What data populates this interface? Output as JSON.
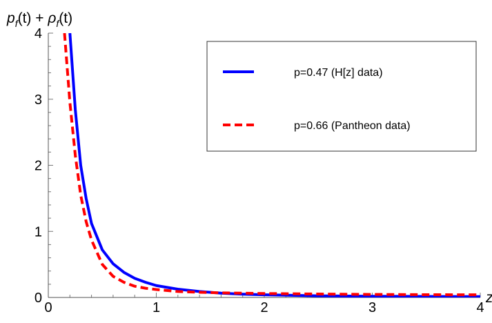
{
  "chart_data": {
    "type": "line",
    "title": "",
    "xlabel": "z",
    "ylabel": "p_f(t) + ρ_f(t)",
    "ylabel_parts": {
      "p": "p",
      "p_sub": "f",
      "p_arg": "(t) + ",
      "rho": "ρ",
      "rho_sub": "f",
      "rho_arg": "(t)"
    },
    "xlim": [
      0,
      4
    ],
    "ylim": [
      0,
      4
    ],
    "x_ticks": [
      0,
      1,
      2,
      3,
      4
    ],
    "y_ticks": [
      0,
      1,
      2,
      3,
      4
    ],
    "x_tick_labels": [
      "0",
      "1",
      "2",
      "3",
      "4"
    ],
    "y_tick_labels": [
      "0",
      "1",
      "2",
      "3",
      "4"
    ],
    "grid": false,
    "legend_position": "top-right",
    "series": [
      {
        "name": "p=0.47 (H[z] data)",
        "color": "#0000ff",
        "style": "solid",
        "points": [
          [
            0.2,
            4.0
          ],
          [
            0.25,
            2.84
          ],
          [
            0.3,
            2.0
          ],
          [
            0.35,
            1.5
          ],
          [
            0.4,
            1.12
          ],
          [
            0.5,
            0.72
          ],
          [
            0.6,
            0.51
          ],
          [
            0.7,
            0.38
          ],
          [
            0.8,
            0.29
          ],
          [
            0.9,
            0.23
          ],
          [
            1.0,
            0.18
          ],
          [
            1.2,
            0.125
          ],
          [
            1.4,
            0.09
          ],
          [
            1.6,
            0.065
          ],
          [
            1.8,
            0.05
          ],
          [
            2.0,
            0.04
          ],
          [
            2.5,
            0.025
          ],
          [
            3.0,
            0.018
          ],
          [
            3.5,
            0.015
          ],
          [
            4.0,
            0.013
          ]
        ]
      },
      {
        "name": "p=0.66 (Pantheon data)",
        "color": "#ff0000",
        "style": "dashed",
        "points": [
          [
            0.15,
            4.0
          ],
          [
            0.2,
            2.95
          ],
          [
            0.25,
            2.15
          ],
          [
            0.3,
            1.55
          ],
          [
            0.35,
            1.15
          ],
          [
            0.4,
            0.87
          ],
          [
            0.5,
            0.5
          ],
          [
            0.6,
            0.32
          ],
          [
            0.7,
            0.23
          ],
          [
            0.8,
            0.17
          ],
          [
            0.9,
            0.14
          ],
          [
            1.0,
            0.12
          ],
          [
            1.2,
            0.09
          ],
          [
            1.4,
            0.078
          ],
          [
            1.6,
            0.07
          ],
          [
            1.8,
            0.065
          ],
          [
            2.0,
            0.06
          ],
          [
            2.5,
            0.052
          ],
          [
            3.0,
            0.046
          ],
          [
            3.5,
            0.042
          ],
          [
            4.0,
            0.04
          ]
        ]
      }
    ]
  }
}
